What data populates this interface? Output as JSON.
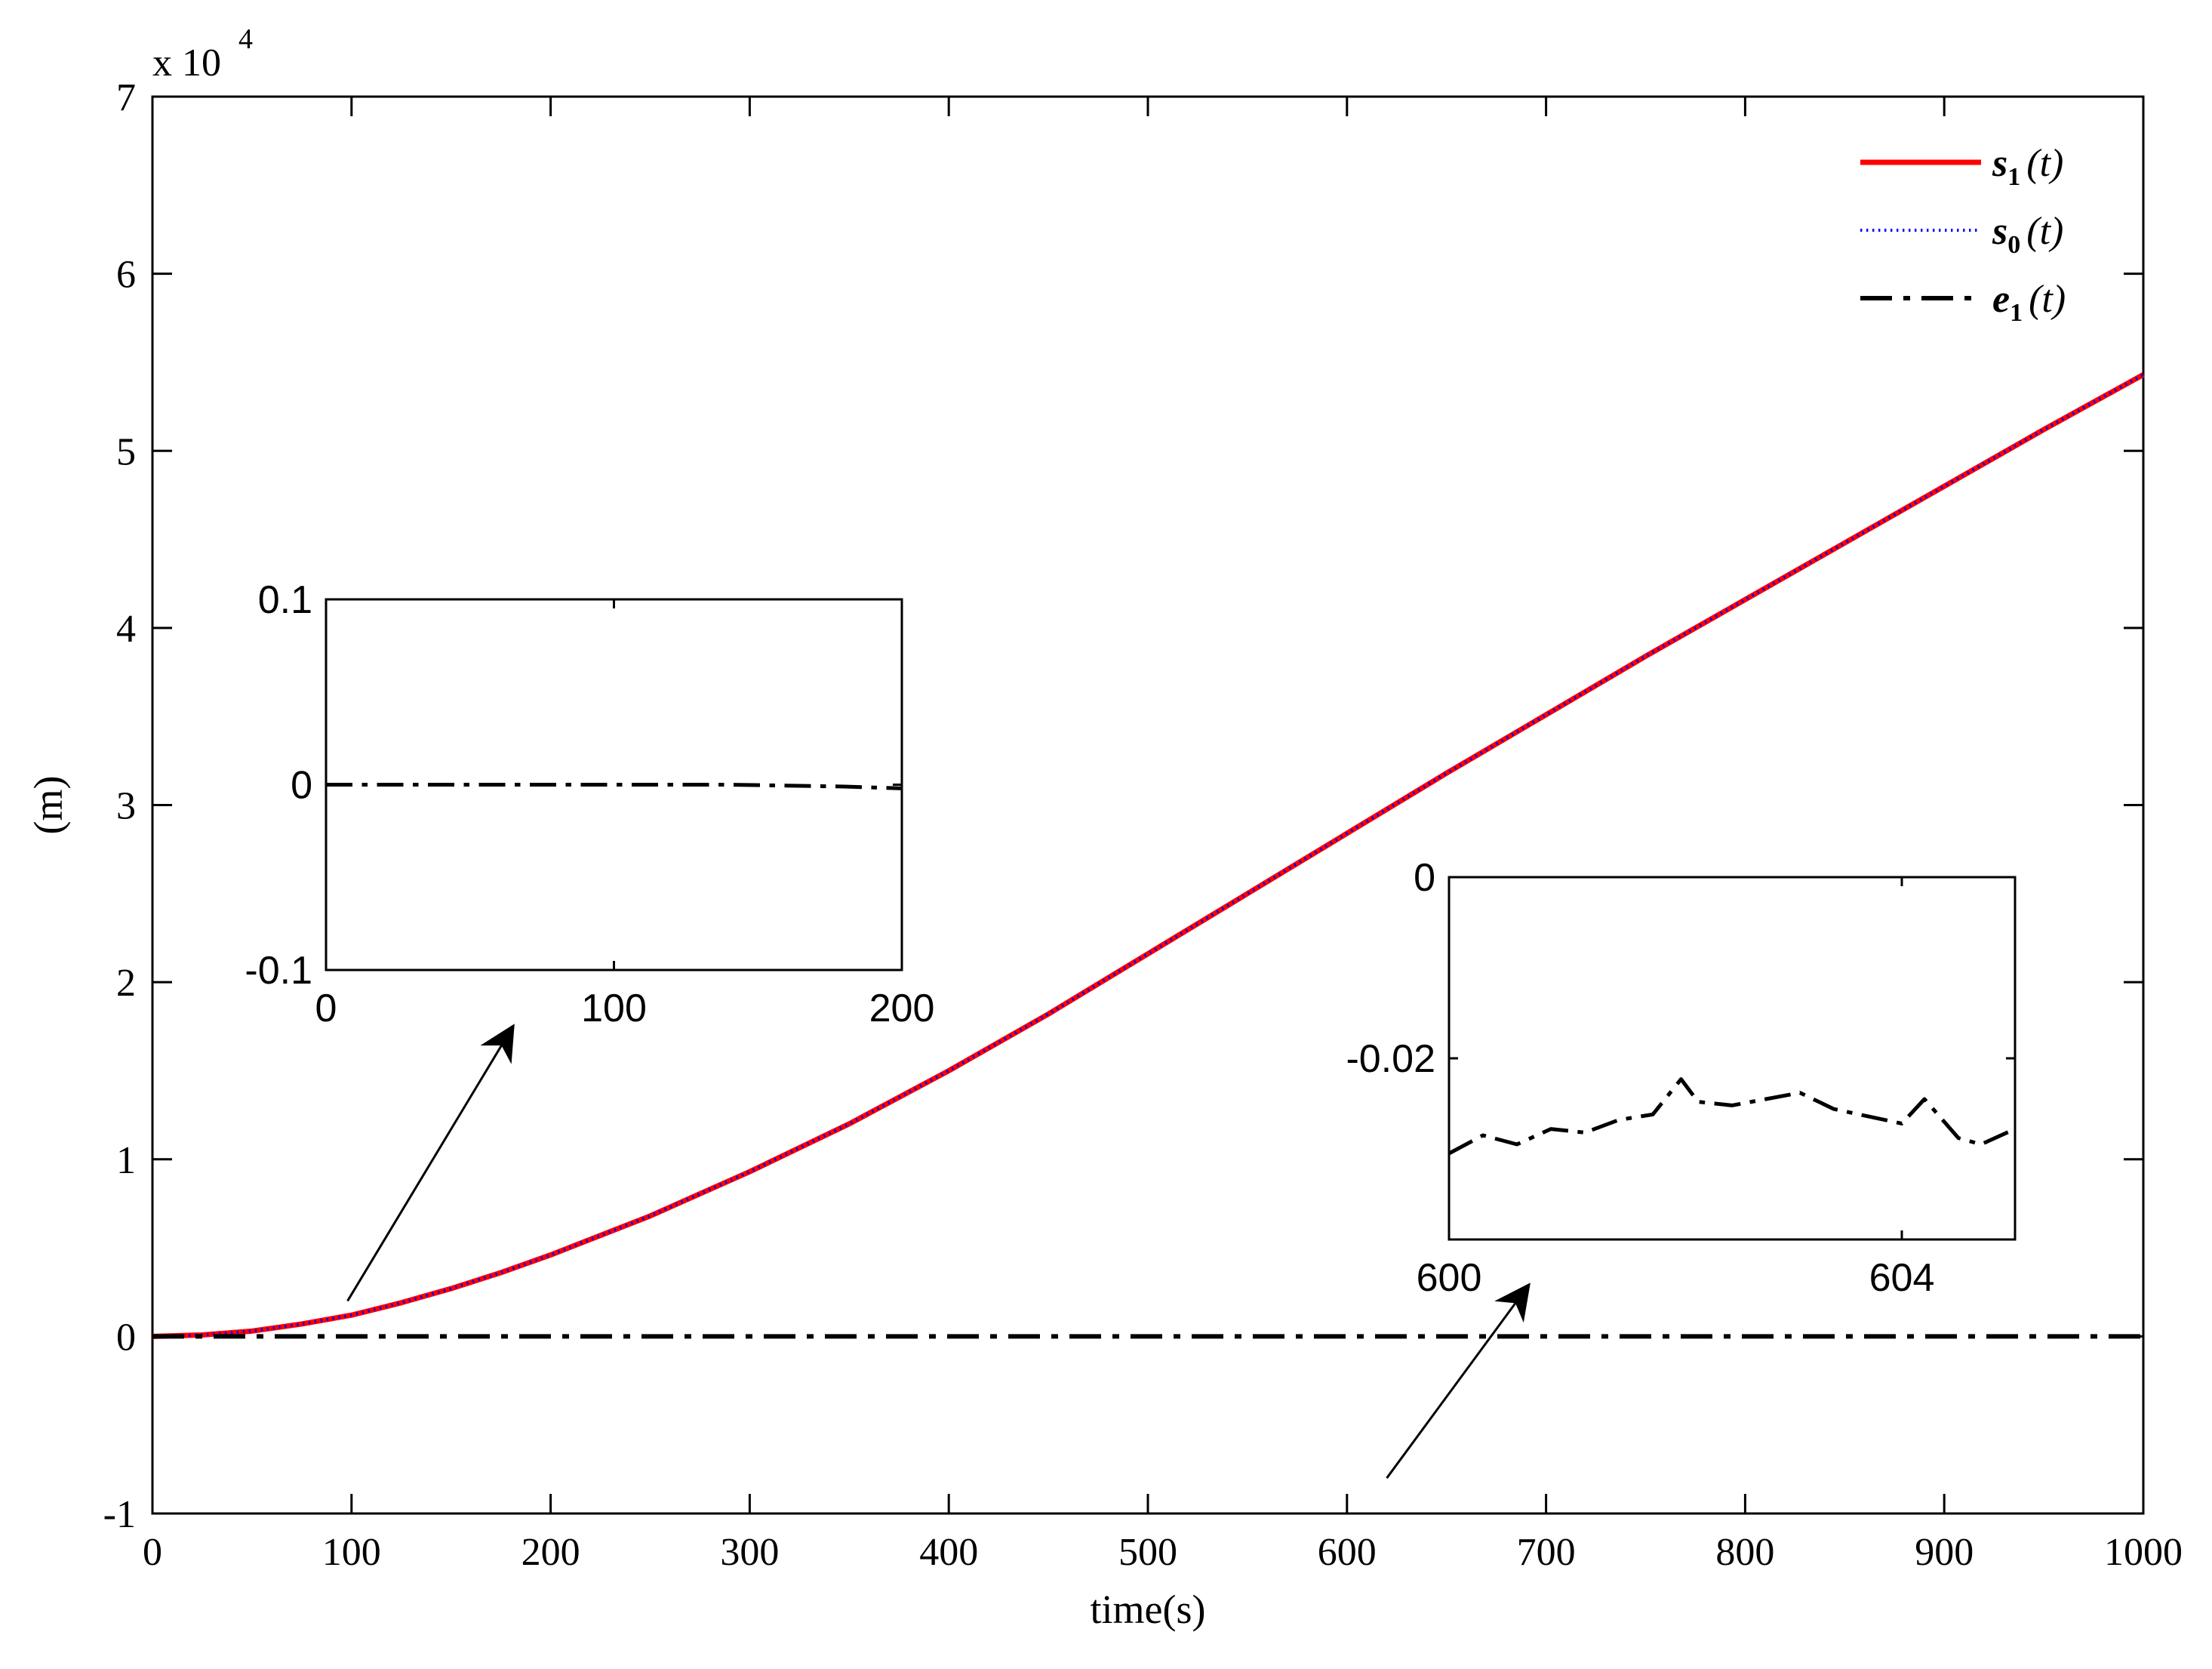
{
  "chart_data": [
    {
      "type": "line",
      "xlabel": "time(s)",
      "ylabel": "(m)",
      "xlim": [
        0,
        1000
      ],
      "ylim": [
        -1,
        7
      ],
      "y_scale_label": {
        "base": "x 10",
        "exponent": "4"
      },
      "x_ticks": [
        "0",
        "100",
        "200",
        "300",
        "400",
        "500",
        "600",
        "700",
        "800",
        "900",
        "1000"
      ],
      "y_ticks": [
        "-1",
        "0",
        "1",
        "2",
        "3",
        "4",
        "5",
        "6",
        "7"
      ],
      "legend_position": "top-right",
      "series": [
        {
          "name": "s1(t)",
          "label_parts": {
            "var": "s",
            "sub": "1",
            "arg": "(t)"
          },
          "color": "#ff0000",
          "style": "solid",
          "x": [
            0,
            25,
            50,
            75,
            100,
            125,
            150,
            175,
            200,
            250,
            300,
            350,
            400,
            450,
            500,
            550,
            600,
            650,
            700,
            750,
            800,
            850,
            900,
            950,
            1000
          ],
          "y": [
            0,
            0.008,
            0.03,
            0.07,
            0.12,
            0.19,
            0.27,
            0.36,
            0.46,
            0.68,
            0.93,
            1.2,
            1.5,
            1.82,
            2.16,
            2.5,
            2.84,
            3.18,
            3.51,
            3.84,
            4.16,
            4.48,
            4.8,
            5.12,
            5.43
          ]
        },
        {
          "name": "s0(t)",
          "label_parts": {
            "var": "s",
            "sub": "0",
            "arg": "(t)"
          },
          "color": "#0000ff",
          "style": "dotted",
          "x": [
            0,
            25,
            50,
            75,
            100,
            125,
            150,
            175,
            200,
            250,
            300,
            350,
            400,
            450,
            500,
            550,
            600,
            650,
            700,
            750,
            800,
            850,
            900,
            950,
            1000
          ],
          "y": [
            0,
            0.008,
            0.03,
            0.07,
            0.12,
            0.19,
            0.27,
            0.36,
            0.46,
            0.68,
            0.93,
            1.2,
            1.5,
            1.82,
            2.16,
            2.5,
            2.84,
            3.18,
            3.51,
            3.84,
            4.16,
            4.48,
            4.8,
            5.12,
            5.43
          ]
        },
        {
          "name": "e1(t)",
          "label_parts": {
            "var": "e",
            "sub": "1",
            "arg": "(t)"
          },
          "color": "#000000",
          "style": "dashdot",
          "x": [
            0,
            1000
          ],
          "y": [
            0,
            0
          ]
        }
      ],
      "annotations": [
        {
          "type": "arrow",
          "from": [
            98,
            0.2
          ],
          "to": [
            180,
            1.73
          ]
        },
        {
          "type": "arrow",
          "from": [
            620,
            -0.8
          ],
          "to": [
            690,
            0.27
          ]
        }
      ]
    },
    {
      "type": "line",
      "inset": "left",
      "xlim": [
        0,
        200
      ],
      "ylim": [
        -0.1,
        0.1
      ],
      "x_ticks": [
        "0",
        "100",
        "200"
      ],
      "y_ticks": [
        "-0.1",
        "0",
        "0.1"
      ],
      "series": [
        {
          "name": "e1(t)",
          "color": "#000000",
          "style": "dashdot",
          "x": [
            0,
            140,
            160,
            180,
            200
          ],
          "y": [
            0,
            0,
            -0.0005,
            -0.001,
            -0.002
          ]
        }
      ]
    },
    {
      "type": "line",
      "inset": "right",
      "xlim": [
        600,
        605
      ],
      "ylim": [
        -0.04,
        0
      ],
      "x_ticks": [
        "600",
        "604"
      ],
      "y_ticks": [
        "-0.02",
        "0"
      ],
      "series": [
        {
          "name": "e1(t)",
          "color": "#000000",
          "style": "dashdot",
          "x": [
            600,
            600.3,
            600.6,
            600.9,
            601.2,
            601.5,
            601.8,
            602.05,
            602.2,
            602.5,
            602.8,
            603.1,
            603.4,
            603.7,
            604.0,
            604.2,
            604.5,
            604.7,
            605
          ],
          "y": [
            -0.0305,
            -0.0285,
            -0.0295,
            -0.0278,
            -0.0282,
            -0.0268,
            -0.0262,
            -0.0223,
            -0.0248,
            -0.0252,
            -0.0245,
            -0.0238,
            -0.0256,
            -0.0264,
            -0.0272,
            -0.0245,
            -0.0288,
            -0.0295,
            -0.0278
          ]
        }
      ]
    }
  ]
}
